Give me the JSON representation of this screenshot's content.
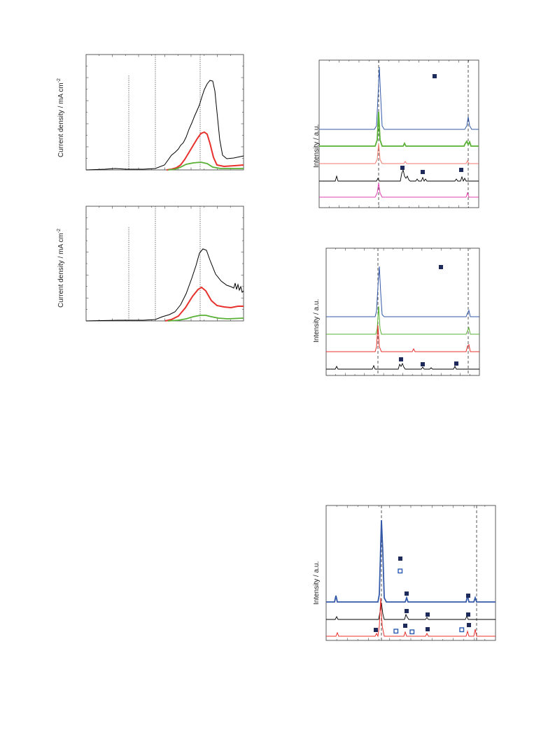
{
  "labels": {
    "current_density": "Current density / mA cm",
    "current_density_sup": "-2",
    "intensity": "Intensity / a.u."
  },
  "colors": {
    "black": "#000000",
    "red": "#e8302c",
    "green": "#58b034",
    "blue": "#3459a8",
    "pink": "#e040b0",
    "salmon": "#f07a6e",
    "marker_fill": "#1e2a5a",
    "marker_open": "#2b5bb0"
  },
  "chart_data": [
    {
      "type": "line",
      "ylabel": "Current density / mA cm-2",
      "x": [
        0,
        0.5,
        1,
        1.5,
        2,
        2.5,
        3,
        3.5,
        4,
        4.5,
        5
      ],
      "series": [
        {
          "color": "black",
          "values": [
            0,
            0.01,
            0.02,
            0.03,
            0.08,
            0.25,
            0.55,
            0.8,
            0.42,
            0.12,
            0.1
          ]
        },
        {
          "color": "red",
          "values": [
            0,
            0,
            0,
            0.01,
            0.03,
            0.1,
            0.26,
            0.32,
            0.16,
            0.02,
            0.02
          ]
        },
        {
          "color": "green",
          "values": [
            0,
            0,
            0,
            0,
            0.01,
            0.03,
            0.06,
            0.07,
            0.03,
            0.01,
            0.01
          ]
        }
      ]
    },
    {
      "type": "line",
      "ylabel": "Current density / mA cm-2",
      "x": [
        0,
        0.5,
        1,
        1.5,
        2,
        2.5,
        3,
        3.5,
        4,
        4.5,
        5
      ],
      "series": [
        {
          "color": "black",
          "values": [
            0,
            0,
            0.01,
            0.02,
            0.05,
            0.18,
            0.45,
            0.62,
            0.5,
            0.32,
            0.3
          ]
        },
        {
          "color": "red",
          "values": [
            0,
            0,
            0,
            0.01,
            0.02,
            0.08,
            0.2,
            0.28,
            0.18,
            0.12,
            0.12
          ]
        },
        {
          "color": "green",
          "values": [
            0,
            0,
            0,
            0,
            0.01,
            0.02,
            0.03,
            0.05,
            0.03,
            0.02,
            0.02
          ]
        }
      ]
    },
    {
      "type": "line",
      "ylabel": "Intensity / a.u.",
      "series_colors": [
        "blue",
        "green",
        "salmon",
        "black",
        "pink"
      ]
    },
    {
      "type": "line",
      "ylabel": "Intensity / a.u.",
      "series_colors": [
        "blue",
        "green",
        "red",
        "black"
      ]
    },
    {
      "type": "line",
      "ylabel": "Intensity / a.u.",
      "series_colors": [
        "blue",
        "black",
        "red"
      ]
    }
  ]
}
